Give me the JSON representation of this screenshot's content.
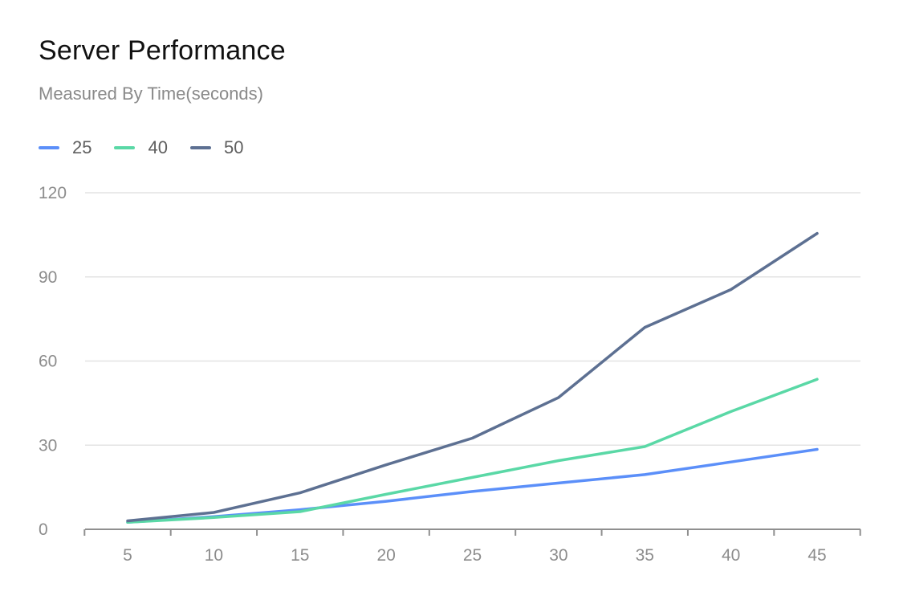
{
  "chart_data": {
    "type": "line",
    "title": "Server Performance",
    "subtitle": "Measured By Time(seconds)",
    "xlabel": "",
    "ylabel": "",
    "x": [
      5,
      10,
      15,
      20,
      25,
      30,
      35,
      40,
      45
    ],
    "ylim": [
      0,
      120
    ],
    "yticks": [
      0,
      30,
      60,
      90,
      120
    ],
    "grid": true,
    "legend_position": "top-left",
    "series": [
      {
        "name": "25",
        "color": "#5b8ff9",
        "values": [
          2.5,
          4.5,
          7,
          10,
          13.5,
          16.5,
          19.5,
          24,
          28.5
        ]
      },
      {
        "name": "40",
        "color": "#5ad8a6",
        "values": [
          2.5,
          4.2,
          6.3,
          12.5,
          18.5,
          24.5,
          29.5,
          42,
          53.5
        ]
      },
      {
        "name": "50",
        "color": "#5d7092",
        "values": [
          3,
          6,
          13,
          23,
          32.5,
          47,
          72,
          85.5,
          105.5
        ]
      }
    ]
  }
}
